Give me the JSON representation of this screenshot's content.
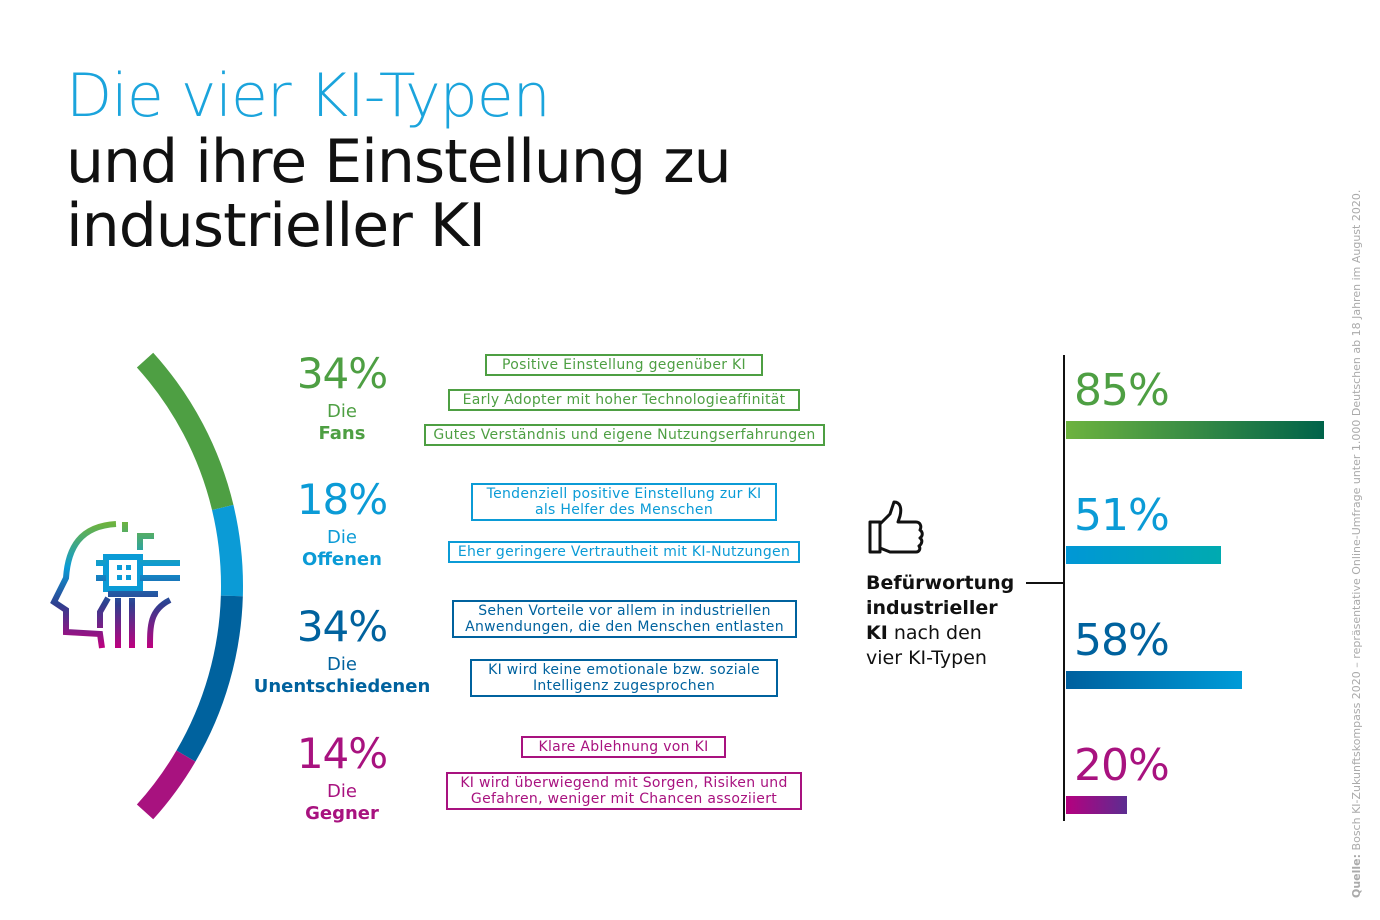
{
  "title": {
    "line1": "Die vier KI-Typen",
    "line2": "und ihre Einstellung zu",
    "line3": "industrieller KI"
  },
  "colors": {
    "fans": "#4e9f43",
    "offenen": "#0b9bd6",
    "unentschiedenen": "#00629e",
    "gegner": "#a8127f"
  },
  "types": [
    {
      "pct": "34%",
      "die": "Die",
      "name": "Fans",
      "color": "#4e9f43",
      "traits": [
        "Positive Einstellung gegenüber KI",
        "Early Adopter mit hoher Technologieaffinität",
        "Gutes Verständnis und eigene Nutzungserfahrungen"
      ]
    },
    {
      "pct": "18%",
      "die": "Die",
      "name": "Offenen",
      "color": "#0b9bd6",
      "traits": [
        "Tendenziell positive Einstellung zur KI als Helfer des Menschen",
        "Eher geringere Vertrautheit mit KI-Nutzungen"
      ]
    },
    {
      "pct": "34%",
      "die": "Die",
      "name": "Unentschiedenen",
      "color": "#00629e",
      "traits": [
        "Sehen Vorteile vor allem in industriellen Anwendungen, die den Menschen entlasten",
        "KI wird keine emotionale bzw. soziale Intelligenz zugesprochen"
      ]
    },
    {
      "pct": "14%",
      "die": "Die",
      "name": "Gegner",
      "color": "#a8127f",
      "traits": [
        "Klare Ablehnung von KI",
        "KI wird überwiegend mit Sorgen, Risiken und Gefahren, weniger mit Chancen assoziiert"
      ]
    }
  ],
  "chart_data": [
    {
      "type": "pie",
      "variant": "arc",
      "categories": [
        "Fans",
        "Offenen",
        "Unentschiedenen",
        "Gegner"
      ],
      "values": [
        34,
        18,
        34,
        14
      ]
    },
    {
      "type": "bar",
      "orientation": "horizontal",
      "categories": [
        "Fans",
        "Offenen",
        "Unentschiedenen",
        "Gegner"
      ],
      "values": [
        85,
        51,
        58,
        20
      ],
      "labels": [
        "85%",
        "51%",
        "58%",
        "20%"
      ],
      "xlim": [
        0,
        100
      ]
    }
  ],
  "legend": {
    "bold1": "Befürwortung",
    "bold2": "industrieller",
    "bold3": "KI",
    "rest3": " nach den",
    "line4": "vier KI-Typen",
    "icon": "thumbs-up-icon"
  },
  "source": {
    "label": "Quelle:",
    "text": " Bosch KI-Zukunftskompass 2020 – repräsentative Online-Umfrage unter 1.000 Deutschen ab 18 Jahren im August 2020."
  }
}
